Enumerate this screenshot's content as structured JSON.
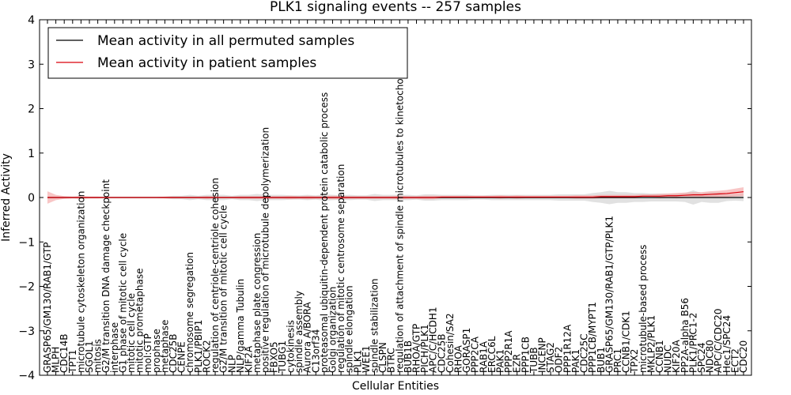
{
  "chart_data": {
    "type": "line",
    "title": "PLK1 signaling events -- 257 samples",
    "xlabel": "Cellular Entities",
    "ylabel": "Inferred Activity",
    "ylim": [
      -4,
      4
    ],
    "yticks": [
      -4,
      -3,
      -2,
      -1,
      0,
      1,
      2,
      3,
      4
    ],
    "legend_position": "top-left",
    "colors": {
      "permuted": "#000000",
      "patient": "#d9000a",
      "patient_band": "#f4a0a0",
      "permuted_band": "#c8c8c8"
    },
    "categories": [
      "GRASP65/GM130/RAB1/GTP",
      "MLPH",
      "CDC14B",
      "TPT1",
      "microtubule cytoskeleton organization",
      "SGOL1",
      "mitosis",
      "G2/M transition DNA damage checkpoint",
      "interphase",
      "G1 phase of mitotic cell cycle",
      "mitotic cell cycle",
      "mitotic prometaphase",
      "mol:GTP",
      "prophase",
      "metaphase",
      "CDC25B",
      "CENPE",
      "chromosome segregation",
      "PLK1/PBIP1",
      "ROCK2",
      "regulation of centriole-centriole cohesion",
      "G2/M transition of mitotic cell cycle",
      "NLP",
      "NLP/gamma Tubulin",
      "KIF2A",
      "metaphase plate congression",
      "positive regulation of microtubule depolymerization",
      "FBXO5",
      "TUBG1",
      "cytokinesis",
      "spindle assembly",
      "Aurora A/BORA",
      "C13orf34",
      "proteasomal ubiquitin-dependent protein catabolic process",
      "Golgi organization",
      "regulation of mitotic centrosome separation",
      "spindle elongation",
      "PLK1",
      "WEE1",
      "spindle stabilization",
      "CLSPN",
      "BTRC",
      "regulation of attachment of spindle microtubules to kinetochore",
      "BUB1B",
      "RHOA/GTP",
      "PICH/PLK1",
      "APC/C/HCDH1",
      "CDC25B",
      "Cohesin/SA2",
      "RHOA",
      "GORASP1",
      "PPP2CA",
      "RAB1A",
      "ERCC6L",
      "PAK1",
      "PPP2R1A",
      "EZR",
      "PPP1CB",
      "TUBB",
      "INCENP",
      "STAG2",
      "ODF2",
      "PPP1R12A",
      "PAK1",
      "CDC25C",
      "PPP1CB/MYPT1",
      "BUB1",
      "GRASP65/GM130/RAB1/GTP/PLK1",
      "PRC1",
      "CCNB1/CDK1",
      "TPX2",
      "microtubule-based process",
      "MKLP2/PLK1",
      "CCNB1",
      "NUDC",
      "KIF20A",
      "PP2A-alpha B56",
      "PLK1/PRC1-2",
      "SPC24",
      "NDC80",
      "APC/C/CDC20",
      "Hec1/SPC24",
      "ECT2",
      "CDC20"
    ],
    "series": [
      {
        "name": "Mean activity in all permuted samples",
        "values": [
          0.0,
          0.0,
          0.0,
          0.0,
          0.0,
          0.0,
          0.0,
          0.0,
          0.0,
          0.0,
          0.0,
          0.0,
          0.0,
          0.0,
          0.0,
          0.0,
          0.0,
          0.0,
          0.0,
          0.0,
          0.0,
          0.0,
          0.0,
          0.0,
          0.0,
          0.0,
          0.0,
          0.0,
          0.0,
          0.0,
          0.0,
          0.0,
          0.0,
          0.0,
          0.0,
          0.0,
          0.0,
          0.0,
          0.0,
          0.0,
          0.0,
          0.0,
          0.0,
          0.0,
          0.0,
          0.0,
          0.0,
          0.0,
          0.0,
          0.0,
          0.0,
          0.0,
          0.0,
          0.0,
          0.0,
          0.0,
          0.0,
          0.0,
          0.0,
          0.0,
          0.0,
          0.0,
          0.0,
          0.0,
          0.0,
          0.0,
          0.0,
          0.0,
          0.0,
          0.0,
          0.0,
          0.0,
          0.0,
          0.0,
          0.0,
          0.0,
          0.0,
          0.0,
          0.0,
          0.0,
          0.0,
          0.0,
          0.0,
          0.0
        ],
        "band_halfwidth": [
          0.02,
          0.02,
          0.02,
          0.02,
          0.02,
          0.02,
          0.02,
          0.02,
          0.02,
          0.02,
          0.02,
          0.02,
          0.02,
          0.02,
          0.02,
          0.04,
          0.04,
          0.06,
          0.04,
          0.06,
          0.06,
          0.06,
          0.04,
          0.06,
          0.06,
          0.08,
          0.06,
          0.06,
          0.06,
          0.05,
          0.05,
          0.06,
          0.05,
          0.07,
          0.06,
          0.05,
          0.06,
          0.05,
          0.05,
          0.08,
          0.06,
          0.06,
          0.06,
          0.06,
          0.05,
          0.07,
          0.07,
          0.06,
          0.06,
          0.06,
          0.06,
          0.05,
          0.05,
          0.06,
          0.06,
          0.06,
          0.06,
          0.06,
          0.06,
          0.06,
          0.06,
          0.07,
          0.07,
          0.07,
          0.07,
          0.1,
          0.12,
          0.15,
          0.12,
          0.12,
          0.1,
          0.1,
          0.09,
          0.09,
          0.09,
          0.09,
          0.1,
          0.16,
          0.1,
          0.12,
          0.12,
          0.08,
          0.07,
          0.08
        ]
      },
      {
        "name": "Mean activity in patient samples",
        "values": [
          0.0,
          0.0,
          0.0,
          0.0,
          0.0,
          0.0,
          0.0,
          0.0,
          0.0,
          0.0,
          0.0,
          0.0,
          0.0,
          0.0,
          0.0,
          0.0,
          0.0,
          0.0,
          0.0,
          0.0,
          0.0,
          0.0,
          0.0,
          0.0,
          0.0,
          0.0,
          0.0,
          0.0,
          0.0,
          0.0,
          0.0,
          0.0,
          0.0,
          0.0,
          0.0,
          0.0,
          0.0,
          0.0,
          0.0,
          0.0,
          0.0,
          0.0,
          0.0,
          0.0,
          0.0,
          0.0,
          0.0,
          0.01,
          0.01,
          0.01,
          0.01,
          0.01,
          0.01,
          0.01,
          0.01,
          0.01,
          0.01,
          0.01,
          0.01,
          0.01,
          0.01,
          0.01,
          0.01,
          0.01,
          0.01,
          0.01,
          0.02,
          0.02,
          0.02,
          0.02,
          0.02,
          0.03,
          0.03,
          0.03,
          0.04,
          0.04,
          0.05,
          0.06,
          0.06,
          0.07,
          0.08,
          0.09,
          0.11,
          0.13
        ],
        "band_halfwidth": [
          0.14,
          0.06,
          0.03,
          0.02,
          0.03,
          0.02,
          0.02,
          0.01,
          0.01,
          0.01,
          0.01,
          0.01,
          0.01,
          0.01,
          0.02,
          0.02,
          0.02,
          0.02,
          0.02,
          0.03,
          0.02,
          0.02,
          0.02,
          0.03,
          0.03,
          0.03,
          0.03,
          0.03,
          0.03,
          0.04,
          0.03,
          0.04,
          0.03,
          0.03,
          0.04,
          0.04,
          0.03,
          0.03,
          0.03,
          0.03,
          0.03,
          0.03,
          0.04,
          0.03,
          0.03,
          0.04,
          0.04,
          0.03,
          0.03,
          0.03,
          0.03,
          0.03,
          0.03,
          0.03,
          0.04,
          0.03,
          0.04,
          0.03,
          0.03,
          0.03,
          0.03,
          0.03,
          0.03,
          0.04,
          0.04,
          0.04,
          0.04,
          0.04,
          0.04,
          0.04,
          0.04,
          0.04,
          0.04,
          0.05,
          0.05,
          0.06,
          0.06,
          0.06,
          0.06,
          0.07,
          0.07,
          0.08,
          0.09,
          0.1
        ]
      }
    ]
  }
}
